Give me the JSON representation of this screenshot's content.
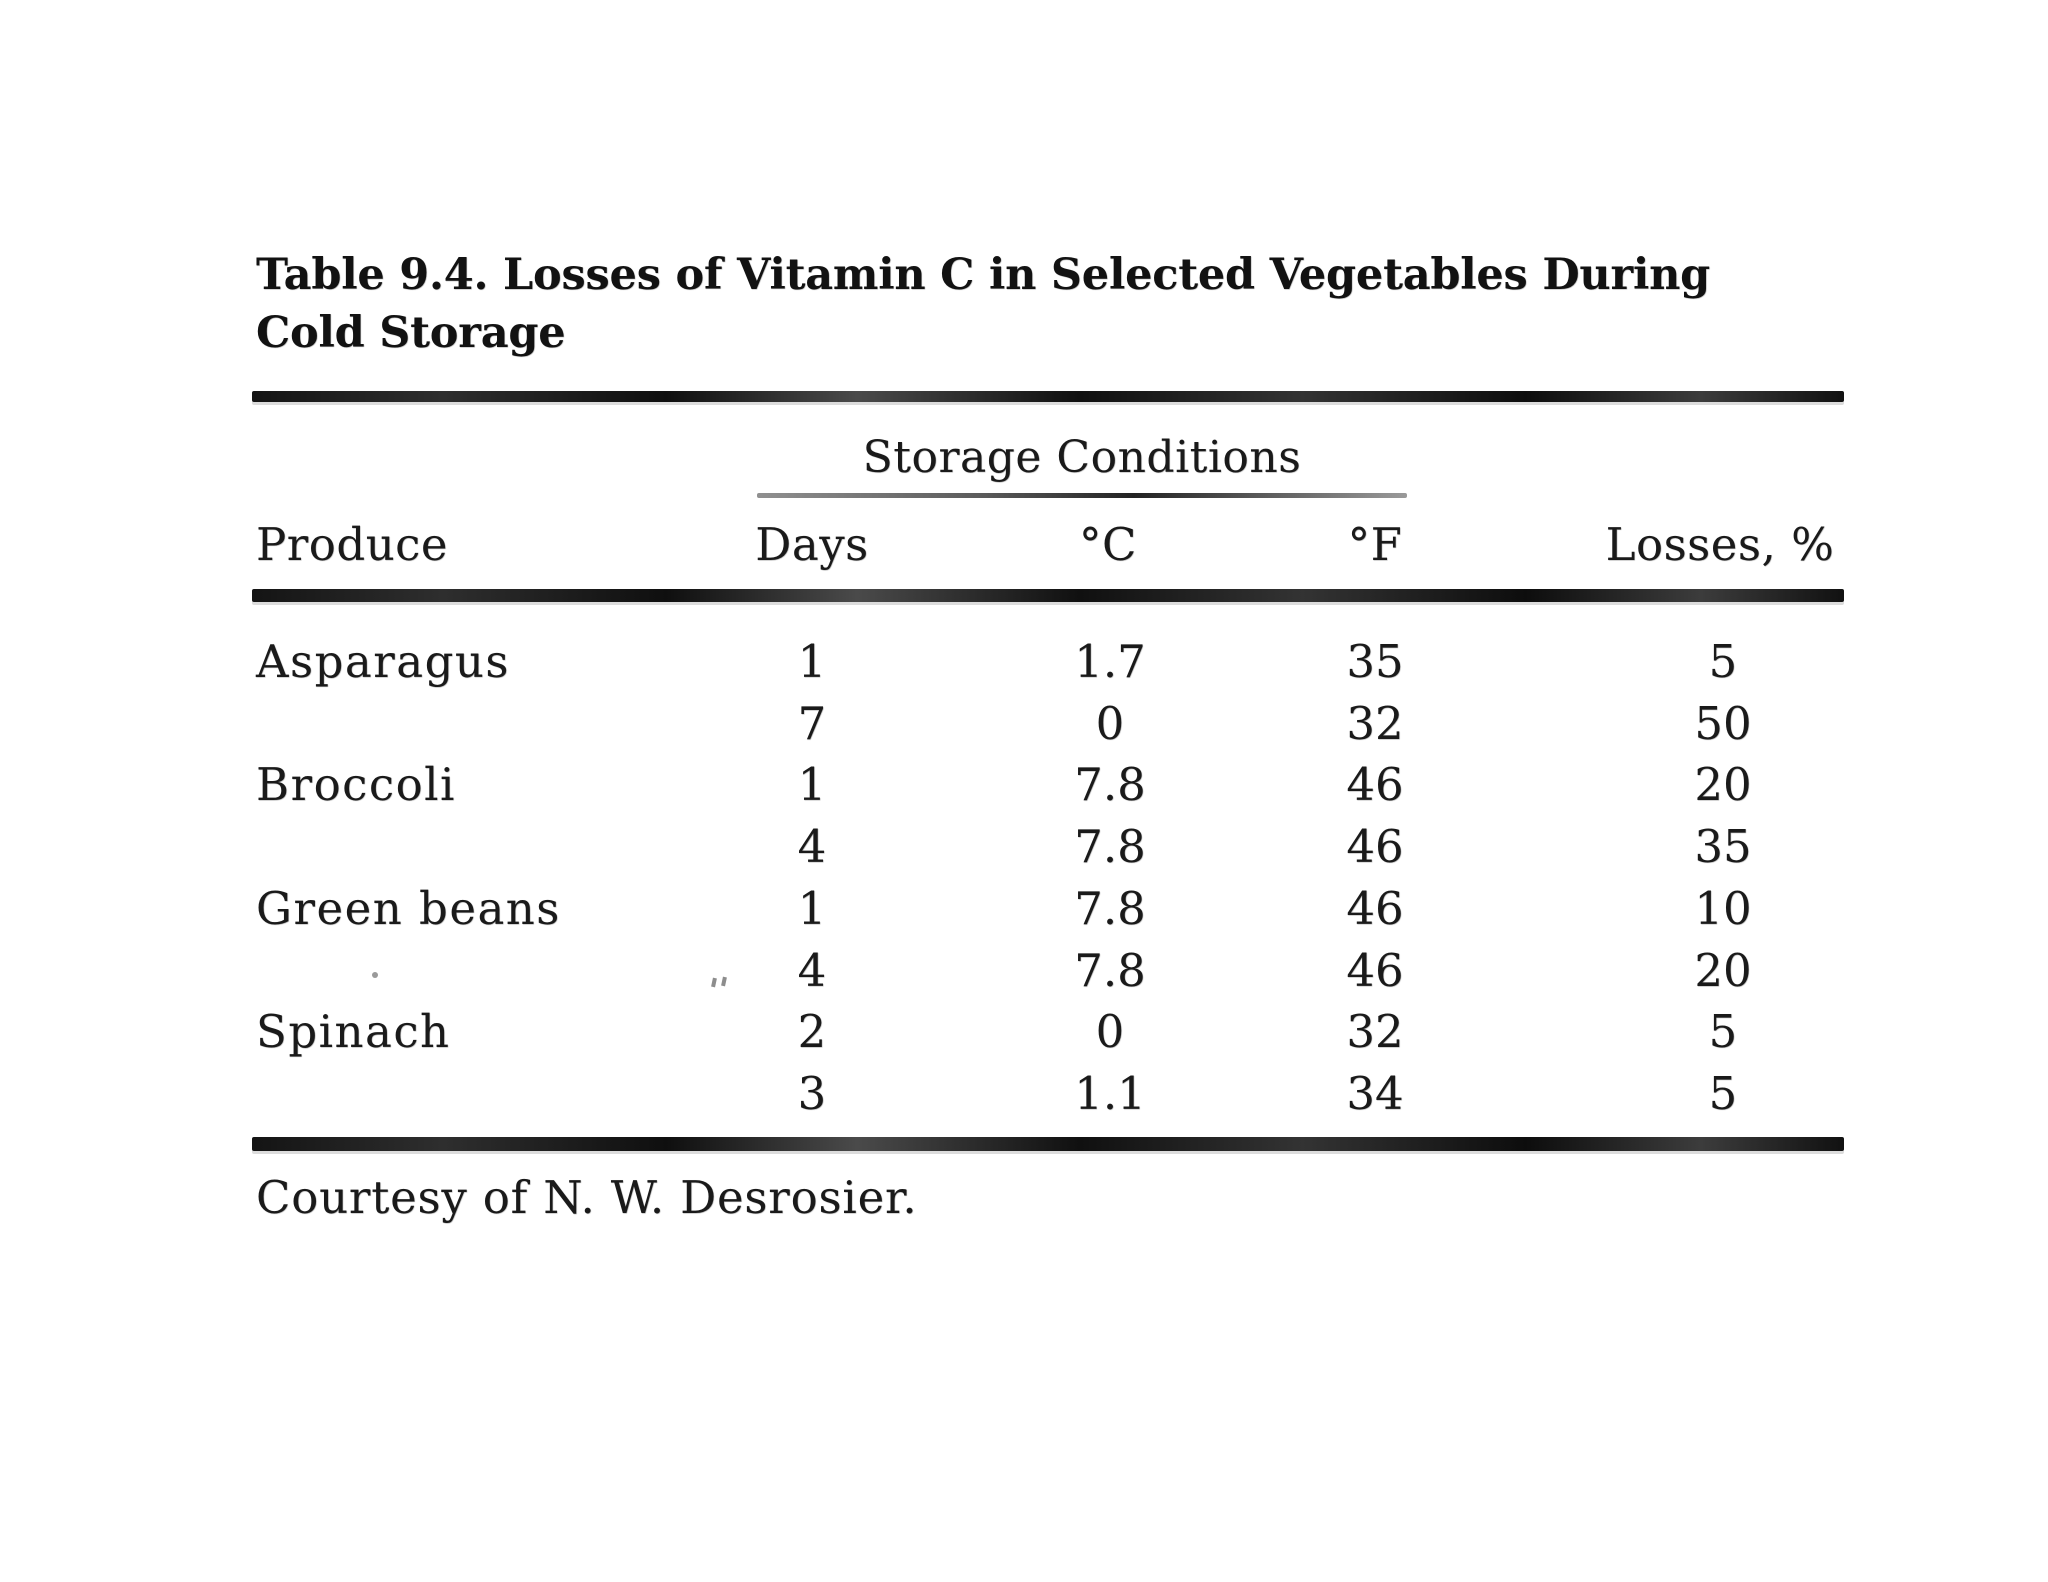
{
  "table": {
    "caption_line1": "Table 9.4. Losses of Vitamin C in Selected Vegetables During",
    "caption_line2": "Cold Storage",
    "group_header": "Storage Conditions",
    "columns": [
      "Produce",
      "Days",
      "°C",
      "°F",
      "Losses, %"
    ],
    "rows": [
      {
        "produce": "Asparagus",
        "days": "1",
        "c": "1.7",
        "f": "35",
        "losses": "5"
      },
      {
        "produce": "",
        "days": "7",
        "c": "0",
        "f": "32",
        "losses": "50"
      },
      {
        "produce": "Broccoli",
        "days": "1",
        "c": "7.8",
        "f": "46",
        "losses": "20"
      },
      {
        "produce": "",
        "days": "4",
        "c": "7.8",
        "f": "46",
        "losses": "35"
      },
      {
        "produce": "Green beans",
        "days": "1",
        "c": "7.8",
        "f": "46",
        "losses": "10"
      },
      {
        "produce": "",
        "days": "4",
        "c": "7.8",
        "f": "46",
        "losses": "20"
      },
      {
        "produce": "Spinach",
        "days": "2",
        "c": "0",
        "f": "32",
        "losses": "5"
      },
      {
        "produce": "",
        "days": "3",
        "c": "1.1",
        "f": "34",
        "losses": "5"
      }
    ],
    "footnote": "Courtesy of N. W. Desrosier.",
    "text_color": "#1a1a1a",
    "rule_color": "#141414"
  }
}
